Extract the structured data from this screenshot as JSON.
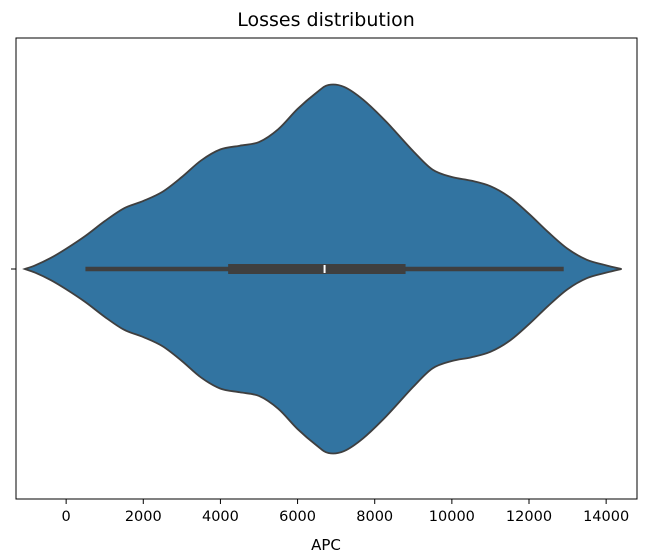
{
  "chart_data": {
    "type": "violin",
    "title": "Losses distribution",
    "xlabel": "APC",
    "ylabel": "",
    "xlim": [
      -1300,
      14800
    ],
    "x_ticks": [
      0,
      2000,
      4000,
      6000,
      8000,
      10000,
      12000,
      14000
    ],
    "x_tick_labels": [
      "0",
      "2000",
      "4000",
      "6000",
      "8000",
      "10000",
      "12000",
      "14000"
    ],
    "y_ticks": [
      ""
    ],
    "colors": {
      "body": "#3274a1",
      "edge": "#3f3f3f",
      "box": "#3f3f3f",
      "median": "#ffffff",
      "background": "#ffffff",
      "frame": "#000000"
    },
    "density_profile": [
      {
        "x": -1070,
        "d": 0.0
      },
      {
        "x": -800,
        "d": 0.02
      },
      {
        "x": -400,
        "d": 0.06
      },
      {
        "x": 0,
        "d": 0.11
      },
      {
        "x": 500,
        "d": 0.18
      },
      {
        "x": 1000,
        "d": 0.26
      },
      {
        "x": 1500,
        "d": 0.33
      },
      {
        "x": 2000,
        "d": 0.37
      },
      {
        "x": 2500,
        "d": 0.42
      },
      {
        "x": 3000,
        "d": 0.5
      },
      {
        "x": 3500,
        "d": 0.59
      },
      {
        "x": 4000,
        "d": 0.65
      },
      {
        "x": 4500,
        "d": 0.67
      },
      {
        "x": 5000,
        "d": 0.69
      },
      {
        "x": 5500,
        "d": 0.76
      },
      {
        "x": 6000,
        "d": 0.87
      },
      {
        "x": 6500,
        "d": 0.96
      },
      {
        "x": 6800,
        "d": 1.0
      },
      {
        "x": 7200,
        "d": 0.99
      },
      {
        "x": 7700,
        "d": 0.92
      },
      {
        "x": 8300,
        "d": 0.8
      },
      {
        "x": 9000,
        "d": 0.64
      },
      {
        "x": 9500,
        "d": 0.54
      },
      {
        "x": 10000,
        "d": 0.5
      },
      {
        "x": 10500,
        "d": 0.48
      },
      {
        "x": 11000,
        "d": 0.45
      },
      {
        "x": 11500,
        "d": 0.39
      },
      {
        "x": 12000,
        "d": 0.3
      },
      {
        "x": 12500,
        "d": 0.2
      },
      {
        "x": 13000,
        "d": 0.11
      },
      {
        "x": 13500,
        "d": 0.05
      },
      {
        "x": 14000,
        "d": 0.02
      },
      {
        "x": 14400,
        "d": 0.0
      }
    ],
    "whisker_low": 500,
    "q1": 4200,
    "median": 6700,
    "q3": 8800,
    "whisker_high": 12900
  }
}
